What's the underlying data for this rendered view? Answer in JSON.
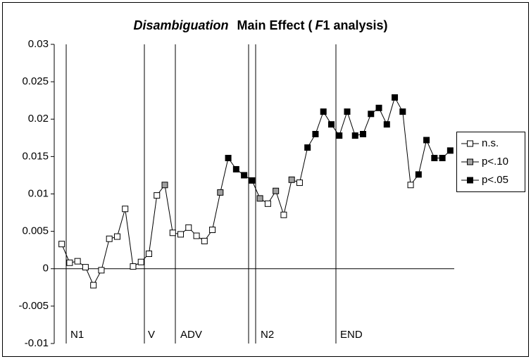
{
  "chart_data": {
    "type": "line",
    "title_parts": [
      "Disambiguation",
      "Main Effect (",
      "F",
      "1 analysis)"
    ],
    "categories": [
      null,
      null,
      null,
      null,
      null,
      null,
      null,
      null,
      null,
      null,
      null,
      null,
      null,
      null,
      null,
      null,
      null,
      null,
      null,
      null,
      null,
      null,
      null,
      null,
      null,
      null,
      null,
      null,
      null,
      null,
      null,
      null,
      null,
      null,
      null,
      null,
      null,
      null,
      null,
      null,
      null,
      null,
      null,
      null,
      null,
      null,
      null,
      null,
      null,
      null
    ],
    "series": [
      {
        "color": "#000000",
        "values": [
          0.0033,
          0.0008,
          0.001,
          0.0002,
          -0.0022,
          -0.0002,
          0.004,
          0.0043,
          0.008,
          0.0003,
          0.0009,
          0.002,
          0.0098,
          0.0112,
          0.0048,
          0.0046,
          0.0055,
          0.0044,
          0.0037,
          0.0052,
          0.0102,
          0.0148,
          0.0133,
          0.0125,
          0.0118,
          0.0094,
          0.0087,
          0.0104,
          0.0072,
          0.0119,
          0.0115,
          0.0162,
          0.018,
          0.021,
          0.0193,
          0.0178,
          0.021,
          0.0178,
          0.018,
          0.0207,
          0.0215,
          0.0193,
          0.0229,
          0.021,
          0.0112,
          0.0126,
          0.0172,
          0.0148,
          0.0148,
          0.0158
        ],
        "marker_colors": [
          "#ffffff",
          "#ffffff",
          "#ffffff",
          "#ffffff",
          "#ffffff",
          "#ffffff",
          "#ffffff",
          "#ffffff",
          "#ffffff",
          "#ffffff",
          "#ffffff",
          "#ffffff",
          "#ffffff",
          "#a0a0a0",
          "#ffffff",
          "#ffffff",
          "#ffffff",
          "#ffffff",
          "#ffffff",
          "#ffffff",
          "#a0a0a0",
          "#000000",
          "#000000",
          "#000000",
          "#000000",
          "#a0a0a0",
          "#ffffff",
          "#a0a0a0",
          "#ffffff",
          "#a0a0a0",
          "#ffffff",
          "#000000",
          "#000000",
          "#000000",
          "#000000",
          "#000000",
          "#000000",
          "#000000",
          "#000000",
          "#000000",
          "#000000",
          "#000000",
          "#000000",
          "#000000",
          "#ffffff",
          "#000000",
          "#000000",
          "#000000",
          "#000000",
          "#000000"
        ]
      }
    ],
    "legend": [
      {
        "name": "n.s.",
        "color": "#ffffff"
      },
      {
        "name": "p<.10",
        "color": "#a0a0a0"
      },
      {
        "name": "p<.05",
        "color": "#000000"
      }
    ],
    "regions": [
      "N1",
      "V",
      "ADV",
      "N2",
      "END"
    ],
    "ylim": [
      -0.01,
      0.03
    ],
    "yticks": [
      -0.01,
      -0.005,
      0,
      0.005,
      0.01,
      0.015,
      0.02,
      0.025,
      0.03
    ],
    "grid": false
  }
}
